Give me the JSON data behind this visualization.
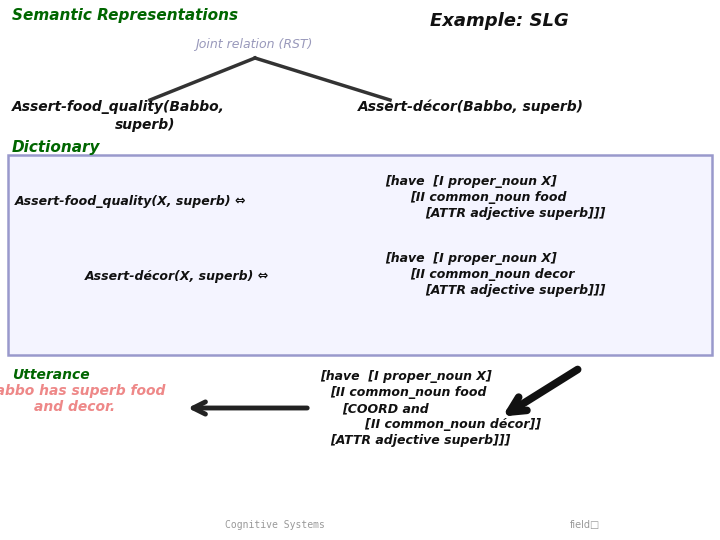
{
  "bg_color": "#ffffff",
  "title_semantic": "Semantic Representations",
  "title_semantic_color": "#006600",
  "title_example": "Example: SLG",
  "title_example_color": "#111111",
  "joint_relation_text": "Joint relation (RST)",
  "joint_relation_color": "#9999bb",
  "assert_food_babbo_line1": "Assert-food_quality(Babbo,",
  "assert_food_babbo_line2": "superb)",
  "assert_decor_babbo": "Assert-décor(Babbo, superb)",
  "dictionary_text": "Dictionary",
  "dictionary_color": "#006600",
  "box_edge_color": "#9999cc",
  "box_face_color": "#f4f4ff",
  "dict_row1_left": "Assert-food_quality(X, superb) ⇔",
  "dict_row1_right_line1": "[have  [I proper_noun X]",
  "dict_row1_right_line2": "[II common_noun food",
  "dict_row1_right_line3": "[ATTR adjective superb]]]",
  "dict_row2_left": "Assert-décor(X, superb) ⇔",
  "dict_row2_right_line1": "[have  [I proper_noun X]",
  "dict_row2_right_line2": "[II common_noun decor",
  "dict_row2_right_line3": "[ATTR adjective superb]]]",
  "utterance_label": "Utterance",
  "utterance_label_color": "#006600",
  "utterance_text_line1": "Babbo has superb food",
  "utterance_text_line2": "and decor.",
  "utterance_text_color": "#ee8888",
  "utt_right_line1": "[have  [I proper_noun X]",
  "utt_right_line2": "[II common_noun food",
  "utt_right_line3": "[COORD and",
  "utt_right_line4": "   [II common_noun décor]]",
  "utt_right_line5": "[ATTR adjective superb]]]",
  "footer_left": "Cognitive Systems",
  "footer_right": "field□",
  "line_color": "#333333",
  "arrow_color": "#222222",
  "text_color": "#111111"
}
